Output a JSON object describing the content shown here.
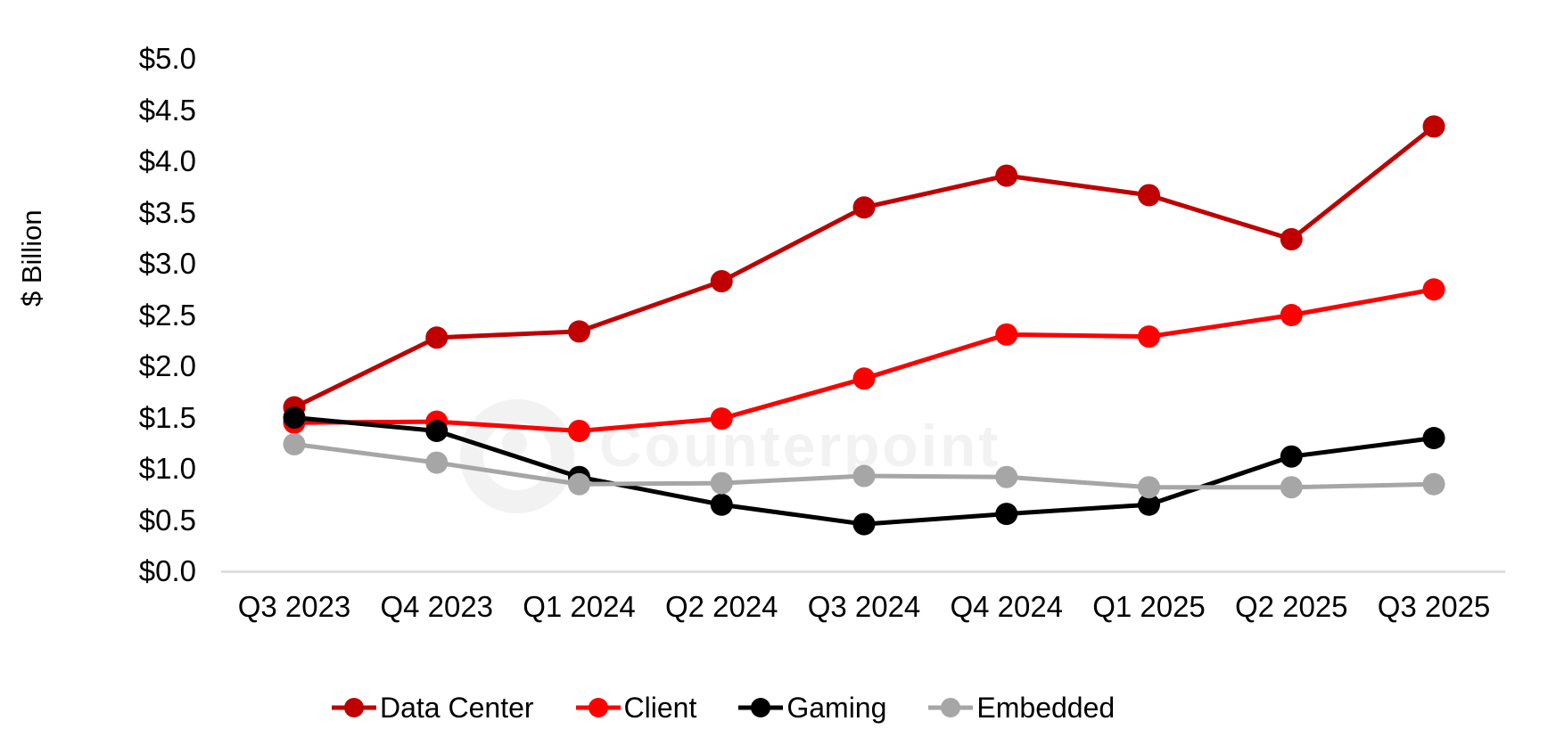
{
  "watermark": {
    "text": "Counterpoint",
    "color": "#f2f2f2"
  },
  "axis_colors": {
    "baseline": "#d9d9d9",
    "text": "#000000"
  },
  "chart_data": {
    "type": "line",
    "title": "",
    "xlabel": "",
    "ylabel": "$ Billion",
    "categories": [
      "Q3 2023",
      "Q4 2023",
      "Q1 2024",
      "Q2 2024",
      "Q3 2024",
      "Q4 2024",
      "Q1 2025",
      "Q2 2025",
      "Q3 2025"
    ],
    "series": [
      {
        "name": "Data Center",
        "color": "#C00000",
        "values": [
          1.6,
          2.28,
          2.34,
          2.83,
          3.55,
          3.86,
          3.67,
          3.24,
          4.34
        ]
      },
      {
        "name": "Client",
        "color": "#FF0000",
        "values": [
          1.45,
          1.46,
          1.37,
          1.49,
          1.88,
          2.31,
          2.29,
          2.5,
          2.75
        ]
      },
      {
        "name": "Gaming",
        "color": "#000000",
        "values": [
          1.5,
          1.37,
          0.92,
          0.65,
          0.46,
          0.56,
          0.65,
          1.12,
          1.3
        ]
      },
      {
        "name": "Embedded",
        "color": "#A6A6A6",
        "values": [
          1.24,
          1.06,
          0.85,
          0.86,
          0.93,
          0.92,
          0.82,
          0.82,
          0.85
        ]
      }
    ],
    "ylim": [
      0,
      5
    ],
    "ytick_step": 0.5,
    "y_ticks": [
      "$0.0",
      "$0.5",
      "$1.0",
      "$1.5",
      "$2.0",
      "$2.5",
      "$3.0",
      "$3.5",
      "$4.0",
      "$4.5",
      "$5.0"
    ],
    "grid": false,
    "legend_position": "bottom",
    "marker": "circle"
  }
}
